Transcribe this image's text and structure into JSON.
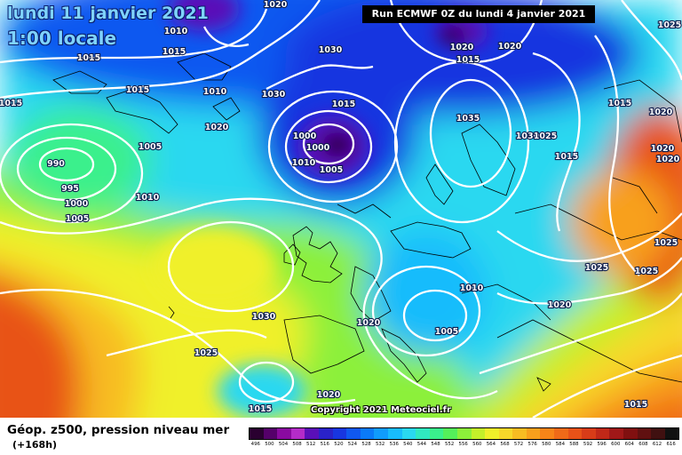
{
  "header": {
    "date": "lundi 11 janvier 2021",
    "hour": "1:00 locale",
    "run": "Run ECMWF 0Z du lundi 4 janvier 2021"
  },
  "map": {
    "copyright": "Copyright 2021 Meteociel.fr",
    "pressure_labels": [
      "1010",
      "1020",
      "1015",
      "1015",
      "1010",
      "1030",
      "1030",
      "1020",
      "1015",
      "990",
      "995",
      "1000",
      "1005",
      "1005",
      "1010",
      "1000",
      "1000",
      "1010",
      "1005",
      "1015",
      "1035",
      "1030",
      "1025",
      "1015",
      "1020",
      "1020",
      "1015",
      "1025",
      "1020",
      "1020",
      "1025",
      "1025",
      "1010",
      "1005",
      "1030",
      "1020",
      "1025",
      "1020",
      "1015",
      "1015",
      "1025",
      "1020",
      "1015",
      "1020",
      "1015"
    ],
    "lows": [
      "1000",
      "990"
    ],
    "colors": {
      "sea": "#f0a000",
      "coast": "#000000",
      "isobar": "#ffffff"
    }
  },
  "footer": {
    "caption": "Géop. z500, pression niveau mer",
    "lead_time": "(+168h)"
  },
  "legend": {
    "labels": [
      "496",
      "500",
      "504",
      "508",
      "512",
      "516",
      "520",
      "524",
      "528",
      "532",
      "536",
      "540",
      "544",
      "548",
      "552",
      "556",
      "560",
      "564",
      "568",
      "572",
      "576",
      "580",
      "584",
      "588",
      "592",
      "596",
      "600",
      "604",
      "608",
      "612",
      "616"
    ],
    "colors": [
      "#2a0030",
      "#55006a",
      "#8a0aa0",
      "#b42cc8",
      "#5a0fb8",
      "#2a22c8",
      "#1836e0",
      "#1058f0",
      "#0a7af8",
      "#109cfc",
      "#18bcfc",
      "#2ad8f0",
      "#30e8c0",
      "#3af08c",
      "#54f05a",
      "#8cf03a",
      "#c4f02a",
      "#f0f02a",
      "#f8d82a",
      "#f8bc22",
      "#f8a01c",
      "#f88418",
      "#f06a18",
      "#e85218",
      "#d83c18",
      "#c02818",
      "#a01818",
      "#801010",
      "#601010",
      "#401010",
      "#101010"
    ]
  }
}
